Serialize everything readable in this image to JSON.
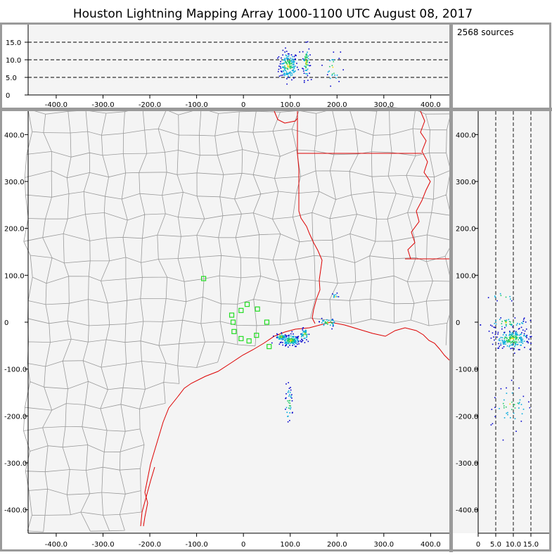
{
  "title": "Houston Lightning Mapping Array   1000-1100 UTC  August 08, 2017",
  "source_count": "2568 sources",
  "colors": {
    "frame": "#9a9a9a",
    "plot_bg": "#f4f4f4",
    "county_line": "#9a9a9a",
    "state_line": "#dd0000",
    "station": "#22dd22",
    "source_low": "#0000cc",
    "source_mid": "#00aadd",
    "source_high": "#22cc66",
    "source_peak": "#ffdd00"
  },
  "chart_data": [
    {
      "type": "scatter",
      "panel": "altitude-vs-east-west",
      "xlim": [
        -460,
        440
      ],
      "ylim": [
        0,
        20
      ],
      "x_ticks": [
        -400,
        -300,
        -200,
        -100,
        0,
        100,
        200,
        300,
        400
      ],
      "x_tick_labels": [
        "-400.0",
        "-300.0",
        "-200.0",
        "-100.0",
        "0",
        "100.0",
        "200.0",
        "300.0",
        "400.0"
      ],
      "y_ticks": [
        0,
        5,
        10,
        15
      ],
      "y_tick_labels": [
        "0",
        "5.0",
        "10.0",
        "15.0"
      ],
      "dashed_lines": [
        5,
        10,
        15
      ],
      "clusters": [
        {
          "x": 95,
          "y": 8.5,
          "sx": 10,
          "sy": 2.0,
          "n": 160
        },
        {
          "x": 133,
          "y": 9.5,
          "sx": 4,
          "sy": 2.5,
          "n": 60
        },
        {
          "x": 190,
          "y": 8.0,
          "sx": 8,
          "sy": 2.5,
          "n": 25
        }
      ]
    },
    {
      "type": "scatter",
      "panel": "plan-view",
      "xlim": [
        -460,
        440
      ],
      "ylim": [
        -450,
        450
      ],
      "x_ticks": [
        -400,
        -300,
        -200,
        -100,
        0,
        100,
        200,
        300,
        400
      ],
      "x_tick_labels": [
        "-400.0",
        "-300.0",
        "-200.0",
        "-100.0",
        "0",
        "100.0",
        "200.0",
        "300.0",
        "400.0"
      ],
      "y_ticks": [
        -400,
        -300,
        -200,
        -100,
        0,
        100,
        200,
        300,
        400
      ],
      "y_tick_labels": [
        "-400.0",
        "-300.0",
        "-200.0",
        "-100.0",
        "0",
        "100.0",
        "200.0",
        "300.0",
        "400.0"
      ],
      "stations": [
        [
          -85,
          93
        ],
        [
          -25,
          15
        ],
        [
          -5,
          25
        ],
        [
          8,
          38
        ],
        [
          30,
          28
        ],
        [
          -20,
          -20
        ],
        [
          -5,
          -35
        ],
        [
          28,
          -28
        ],
        [
          12,
          -40
        ],
        [
          50,
          0
        ],
        [
          -22,
          0
        ],
        [
          55,
          -52
        ]
      ],
      "clusters": [
        {
          "x": 100,
          "y": -38,
          "sx": 10,
          "sy": 6,
          "n": 150
        },
        {
          "x": 80,
          "y": -30,
          "sx": 6,
          "sy": 4,
          "n": 40
        },
        {
          "x": 130,
          "y": -25,
          "sx": 5,
          "sy": 6,
          "n": 40
        },
        {
          "x": 180,
          "y": 0,
          "sx": 10,
          "sy": 5,
          "n": 35
        },
        {
          "x": 195,
          "y": 55,
          "sx": 3,
          "sy": 4,
          "n": 10
        },
        {
          "x": 96,
          "y": -175,
          "sx": 4,
          "sy": 20,
          "n": 40
        }
      ]
    },
    {
      "type": "scatter",
      "panel": "north-south-vs-altitude",
      "xlim": [
        0,
        20
      ],
      "ylim": [
        -450,
        450
      ],
      "x_ticks": [
        0,
        5,
        10,
        15
      ],
      "x_tick_labels": [
        "0",
        "5.0",
        "10.0",
        "15.0"
      ],
      "y_ticks": [
        -400,
        -300,
        -200,
        -100,
        0,
        100,
        200,
        300,
        400
      ],
      "y_tick_labels": [
        "-400.0",
        "-300.0",
        "-200.0",
        "-100.0",
        "0",
        "100.0",
        "200.0",
        "300.0",
        "400.0"
      ],
      "dashed_lines": [
        5,
        10,
        15
      ],
      "clusters": [
        {
          "x": 9.5,
          "y": -35,
          "sx": 2.5,
          "sy": 10,
          "n": 200
        },
        {
          "x": 8.0,
          "y": 0,
          "sx": 3.0,
          "sy": 6,
          "n": 50
        },
        {
          "x": 7.0,
          "y": 55,
          "sx": 1.5,
          "sy": 6,
          "n": 10
        },
        {
          "x": 9.0,
          "y": -175,
          "sx": 2.5,
          "sy": 20,
          "n": 45
        }
      ]
    }
  ]
}
